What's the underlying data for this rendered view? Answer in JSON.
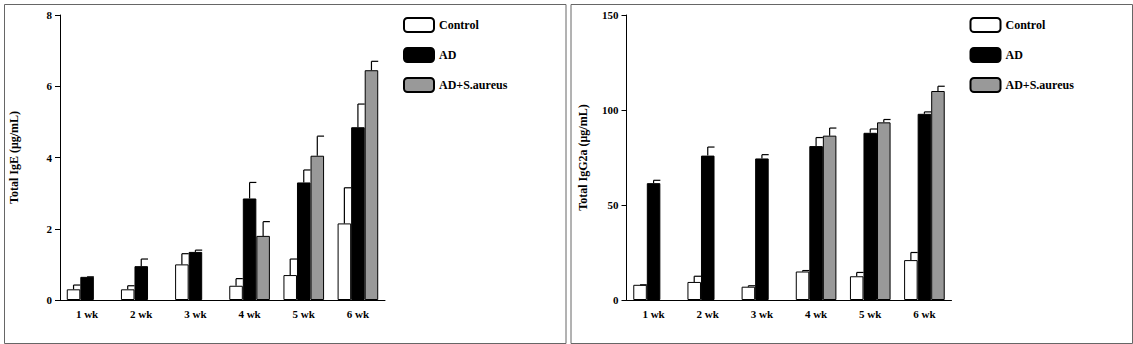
{
  "chart_data": [
    {
      "type": "bar",
      "y_label": "Total IgE (μg/mL)",
      "categories": [
        "1 wk",
        "2 wk",
        "3 wk",
        "4 wk",
        "5 wk",
        "6 wk"
      ],
      "series": [
        {
          "name": "Control",
          "color": "#ffffff",
          "values": [
            0.3,
            0.3,
            1.0,
            0.4,
            0.7,
            2.15
          ],
          "errors": [
            0.12,
            0.1,
            0.3,
            0.2,
            0.45,
            1.0
          ]
        },
        {
          "name": "AD",
          "color": "#000000",
          "values": [
            0.65,
            0.95,
            1.35,
            2.85,
            3.3,
            4.85
          ],
          "errors": [
            0,
            0.2,
            0.05,
            0.45,
            0.35,
            0.65
          ]
        },
        {
          "name": "AD+S.aureus",
          "color": "#999999",
          "values": [
            null,
            null,
            null,
            1.8,
            4.05,
            6.45
          ],
          "errors": [
            null,
            null,
            null,
            0.4,
            0.55,
            0.25
          ]
        }
      ],
      "ylim": [
        0,
        8
      ],
      "yticks": [
        0,
        2,
        4,
        6,
        8
      ],
      "grid": false,
      "legend": "upper right"
    },
    {
      "type": "bar",
      "y_label": "Total IgG2a (μg/mL)",
      "categories": [
        "1 wk",
        "2 wk",
        "3 wk",
        "4 wk",
        "5 wk",
        "6 wk"
      ],
      "series": [
        {
          "name": "Control",
          "color": "#ffffff",
          "values": [
            8,
            9.5,
            7,
            15,
            12.5,
            21
          ],
          "errors": [
            0,
            3,
            0.5,
            0.5,
            2,
            4
          ]
        },
        {
          "name": "AD",
          "color": "#000000",
          "values": [
            61.5,
            76,
            74.5,
            81,
            88,
            98
          ],
          "errors": [
            1.5,
            4.5,
            2,
            4.5,
            2,
            1
          ]
        },
        {
          "name": "AD+S.aureus",
          "color": "#999999",
          "values": [
            null,
            null,
            null,
            86.5,
            93.5,
            110
          ],
          "errors": [
            null,
            null,
            null,
            4,
            1.5,
            2.5
          ]
        }
      ],
      "ylim": [
        0,
        150
      ],
      "yticks": [
        0,
        50,
        100,
        150
      ],
      "grid": false,
      "legend": "upper right"
    }
  ]
}
